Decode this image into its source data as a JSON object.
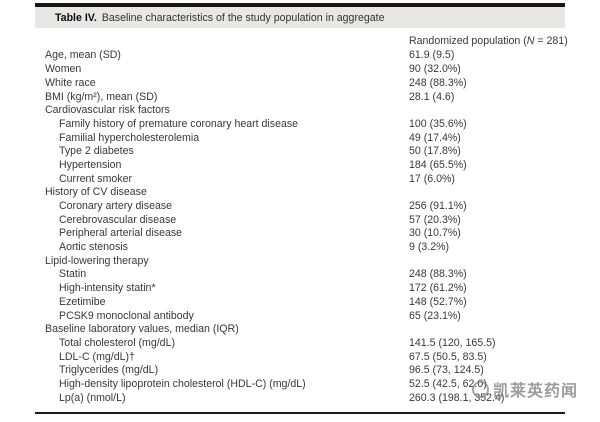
{
  "table": {
    "title_label": "Table IV.",
    "title_text": "Baseline characteristics of the study population in aggregate",
    "column_header": {
      "prefix": "Randomized population (",
      "n": "N",
      "suffix": " = 281)"
    },
    "rows": [
      {
        "label": "Age, mean (SD)",
        "value": "61.9 (9.5)",
        "indent": 0
      },
      {
        "label": "Women",
        "value": "90 (32.0%)",
        "indent": 0
      },
      {
        "label": "White race",
        "value": "248 (88.3%)",
        "indent": 0
      },
      {
        "label": "BMI (kg/m²), mean (SD)",
        "value": "28.1 (4.6)",
        "indent": 0
      },
      {
        "label": "Cardiovascular risk factors",
        "value": "",
        "indent": 0
      },
      {
        "label": "Family history of premature coronary heart disease",
        "value": "100 (35.6%)",
        "indent": 1
      },
      {
        "label": "Familial hypercholesterolemia",
        "value": "49 (17.4%)",
        "indent": 1
      },
      {
        "label": "Type 2 diabetes",
        "value": "50 (17.8%)",
        "indent": 1
      },
      {
        "label": "Hypertension",
        "value": "184 (65.5%)",
        "indent": 1
      },
      {
        "label": "Current smoker",
        "value": "17 (6.0%)",
        "indent": 1
      },
      {
        "label": "History of CV disease",
        "value": "",
        "indent": 0
      },
      {
        "label": "Coronary artery disease",
        "value": "256 (91.1%)",
        "indent": 1
      },
      {
        "label": "Cerebrovascular disease",
        "value": "57 (20.3%)",
        "indent": 1
      },
      {
        "label": "Peripheral arterial disease",
        "value": "30 (10.7%)",
        "indent": 1
      },
      {
        "label": "Aortic stenosis",
        "value": "9 (3.2%)",
        "indent": 1
      },
      {
        "label": "Lipid-lowering therapy",
        "value": "",
        "indent": 0
      },
      {
        "label": "Statin",
        "value": "248 (88.3%)",
        "indent": 1
      },
      {
        "label": "High-intensity statin*",
        "value": "172 (61.2%)",
        "indent": 1
      },
      {
        "label": "Ezetimibe",
        "value": "148 (52.7%)",
        "indent": 1
      },
      {
        "label": "PCSK9 monoclonal antibody",
        "value": "65 (23.1%)",
        "indent": 1
      },
      {
        "label": "Baseline laboratory values, median (IQR)",
        "value": "",
        "indent": 0
      },
      {
        "label": "Total cholesterol (mg/dL)",
        "value": "141.5 (120, 165.5)",
        "indent": 1
      },
      {
        "label": "LDL-C (mg/dL)†",
        "value": "67.5 (50.5, 83.5)",
        "indent": 1
      },
      {
        "label": "Triglycerides (mg/dL)",
        "value": "96.5 (73, 124.5)",
        "indent": 1
      },
      {
        "label": "High-density lipoprotein cholesterol (HDL-C) (mg/dL)",
        "value": "52.5 (42.5, 62.0)",
        "indent": 1
      },
      {
        "label": "Lp(a) (nmol/L)",
        "value": "260.3 (198.1, 352.4)",
        "indent": 1
      }
    ]
  },
  "watermark": {
    "text": "凯莱英药闻"
  },
  "colors": {
    "band_gray": "#e9e7e4",
    "rule_black": "#161616",
    "text": "#383838",
    "watermark_gray": "#808080"
  }
}
